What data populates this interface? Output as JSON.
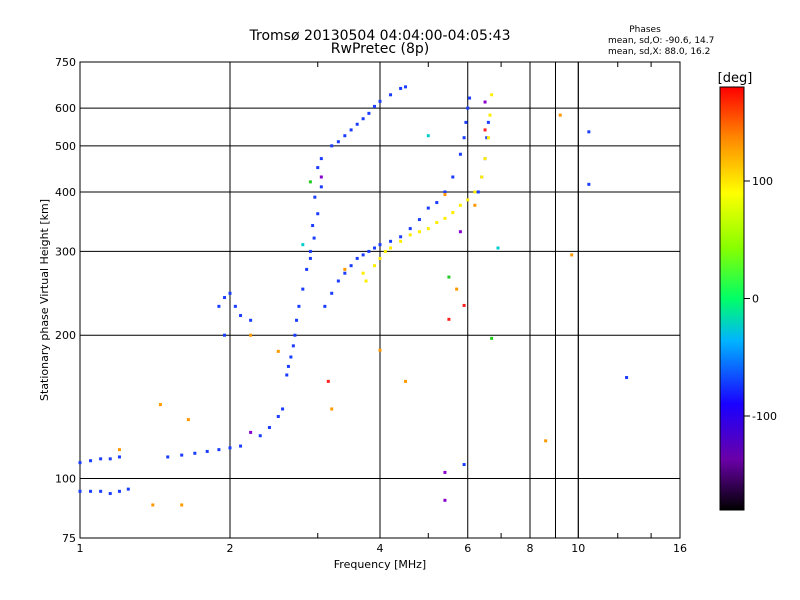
{
  "header": {
    "title": "Tromsø 20130504 04:04:00-04:05:43",
    "subtitle": "RwPretec (8p)"
  },
  "stats": {
    "heading": "Phases",
    "line1": "mean, sd,O: -90.6, 14.7",
    "line2": "mean, sd,X:  88.0, 16.2"
  },
  "chart_data": {
    "type": "scatter",
    "title": "Tromsø 20130504 04:04:00-04:05:43",
    "subtitle": "RwPretec (8p)",
    "xlabel": "Frequency [MHz]",
    "ylabel": "Stationary phase Virtual Height [km]",
    "x_scale": "log",
    "y_scale": "log",
    "xlim": [
      1,
      16
    ],
    "ylim": [
      75,
      750
    ],
    "x_ticks": [
      1,
      2,
      4,
      6,
      8,
      10,
      16
    ],
    "x_tick_labels": [
      "1",
      "2",
      "4",
      "6",
      "8",
      "10",
      "16"
    ],
    "y_ticks": [
      75,
      100,
      200,
      300,
      400,
      500,
      600,
      750
    ],
    "y_tick_labels": [
      "75",
      "100",
      "200",
      "300",
      "400",
      "500",
      "600",
      "750"
    ],
    "grid": true,
    "colorbar": {
      "label": "[deg]",
      "range": [
        -180,
        180
      ],
      "ticks": [
        100,
        0,
        -100
      ],
      "tick_labels": [
        "100",
        "0",
        "-100"
      ]
    },
    "series": [
      {
        "color": "#1a3cff",
        "points": [
          [
            1.0,
            108
          ],
          [
            1.05,
            109
          ],
          [
            1.1,
            110
          ],
          [
            1.15,
            110
          ],
          [
            1.2,
            111
          ],
          [
            1.0,
            94
          ],
          [
            1.05,
            94
          ],
          [
            1.1,
            94
          ],
          [
            1.15,
            93
          ],
          [
            1.2,
            94
          ],
          [
            1.25,
            95
          ],
          [
            1.5,
            111
          ],
          [
            1.6,
            112
          ],
          [
            1.7,
            113
          ],
          [
            1.8,
            114
          ],
          [
            1.9,
            115
          ],
          [
            2.0,
            116
          ],
          [
            2.1,
            117
          ],
          [
            2.3,
            123
          ],
          [
            2.4,
            128
          ],
          [
            2.5,
            135
          ],
          [
            2.55,
            140
          ],
          [
            2.6,
            165
          ],
          [
            2.62,
            172
          ],
          [
            2.65,
            180
          ],
          [
            2.68,
            190
          ],
          [
            2.7,
            200
          ],
          [
            2.72,
            215
          ],
          [
            2.75,
            230
          ],
          [
            2.8,
            250
          ],
          [
            2.85,
            275
          ],
          [
            2.9,
            300
          ],
          [
            2.93,
            340
          ],
          [
            2.96,
            390
          ],
          [
            3.0,
            450
          ],
          [
            3.05,
            470
          ],
          [
            2.9,
            290
          ],
          [
            2.95,
            320
          ],
          [
            3.0,
            360
          ],
          [
            3.05,
            410
          ],
          [
            1.9,
            230
          ],
          [
            1.95,
            240
          ],
          [
            2.0,
            245
          ],
          [
            2.05,
            230
          ],
          [
            2.1,
            220
          ],
          [
            2.2,
            215
          ],
          [
            1.95,
            200
          ],
          [
            3.1,
            230
          ],
          [
            3.2,
            245
          ],
          [
            3.3,
            260
          ],
          [
            3.4,
            270
          ],
          [
            3.5,
            280
          ],
          [
            3.6,
            290
          ],
          [
            3.7,
            295
          ],
          [
            3.8,
            300
          ],
          [
            3.9,
            305
          ],
          [
            4.0,
            310
          ],
          [
            4.2,
            315
          ],
          [
            4.4,
            322
          ],
          [
            4.6,
            335
          ],
          [
            4.8,
            350
          ],
          [
            5.0,
            370
          ],
          [
            5.2,
            380
          ],
          [
            5.4,
            400
          ],
          [
            5.6,
            430
          ],
          [
            5.8,
            480
          ],
          [
            5.9,
            520
          ],
          [
            5.95,
            560
          ],
          [
            6.0,
            600
          ],
          [
            6.05,
            630
          ],
          [
            3.2,
            500
          ],
          [
            3.3,
            510
          ],
          [
            3.4,
            525
          ],
          [
            3.5,
            540
          ],
          [
            3.6,
            555
          ],
          [
            3.7,
            570
          ],
          [
            3.8,
            585
          ],
          [
            3.9,
            605
          ],
          [
            4.0,
            620
          ],
          [
            4.2,
            640
          ],
          [
            4.4,
            660
          ],
          [
            4.5,
            665
          ],
          [
            6.3,
            400
          ],
          [
            6.4,
            430
          ],
          [
            6.5,
            470
          ],
          [
            6.55,
            520
          ],
          [
            6.6,
            560
          ],
          [
            10.5,
            535
          ],
          [
            10.5,
            415
          ],
          [
            12.5,
            163
          ],
          [
            5.9,
            107
          ]
        ]
      },
      {
        "color": "#ffee00",
        "points": [
          [
            3.9,
            280
          ],
          [
            4.0,
            290
          ],
          [
            4.1,
            300
          ],
          [
            4.2,
            305
          ],
          [
            4.4,
            315
          ],
          [
            4.6,
            325
          ],
          [
            4.8,
            330
          ],
          [
            5.0,
            335
          ],
          [
            5.2,
            345
          ],
          [
            5.4,
            352
          ],
          [
            5.6,
            362
          ],
          [
            5.8,
            375
          ],
          [
            6.0,
            385
          ],
          [
            6.2,
            400
          ],
          [
            6.4,
            430
          ],
          [
            6.5,
            470
          ],
          [
            6.6,
            520
          ],
          [
            6.65,
            580
          ],
          [
            6.7,
            640
          ],
          [
            3.7,
            270
          ],
          [
            3.75,
            260
          ]
        ]
      },
      {
        "color": "#ff9900",
        "points": [
          [
            1.2,
            115
          ],
          [
            1.4,
            88
          ],
          [
            1.45,
            143
          ],
          [
            1.6,
            88
          ],
          [
            1.65,
            133
          ],
          [
            2.2,
            200
          ],
          [
            2.5,
            185
          ],
          [
            3.2,
            140
          ],
          [
            3.4,
            275
          ],
          [
            4.0,
            186
          ],
          [
            4.5,
            160
          ],
          [
            5.4,
            395
          ],
          [
            5.7,
            250
          ],
          [
            6.2,
            375
          ],
          [
            8.6,
            120
          ],
          [
            9.2,
            580
          ],
          [
            9.7,
            295
          ]
        ]
      },
      {
        "color": "#ff2020",
        "points": [
          [
            3.15,
            160
          ],
          [
            5.5,
            216
          ],
          [
            5.9,
            231
          ],
          [
            6.5,
            540
          ]
        ]
      },
      {
        "color": "#8800cc",
        "points": [
          [
            2.2,
            125
          ],
          [
            3.05,
            430
          ],
          [
            5.4,
            103
          ],
          [
            5.4,
            90
          ],
          [
            5.8,
            330
          ],
          [
            6.5,
            618
          ]
        ]
      },
      {
        "color": "#22cc22",
        "points": [
          [
            2.9,
            420
          ],
          [
            5.5,
            265
          ],
          [
            6.7,
            197
          ]
        ]
      },
      {
        "color": "#00cccc",
        "points": [
          [
            2.8,
            310
          ],
          [
            5.0,
            525
          ],
          [
            6.9,
            305
          ]
        ]
      }
    ]
  }
}
